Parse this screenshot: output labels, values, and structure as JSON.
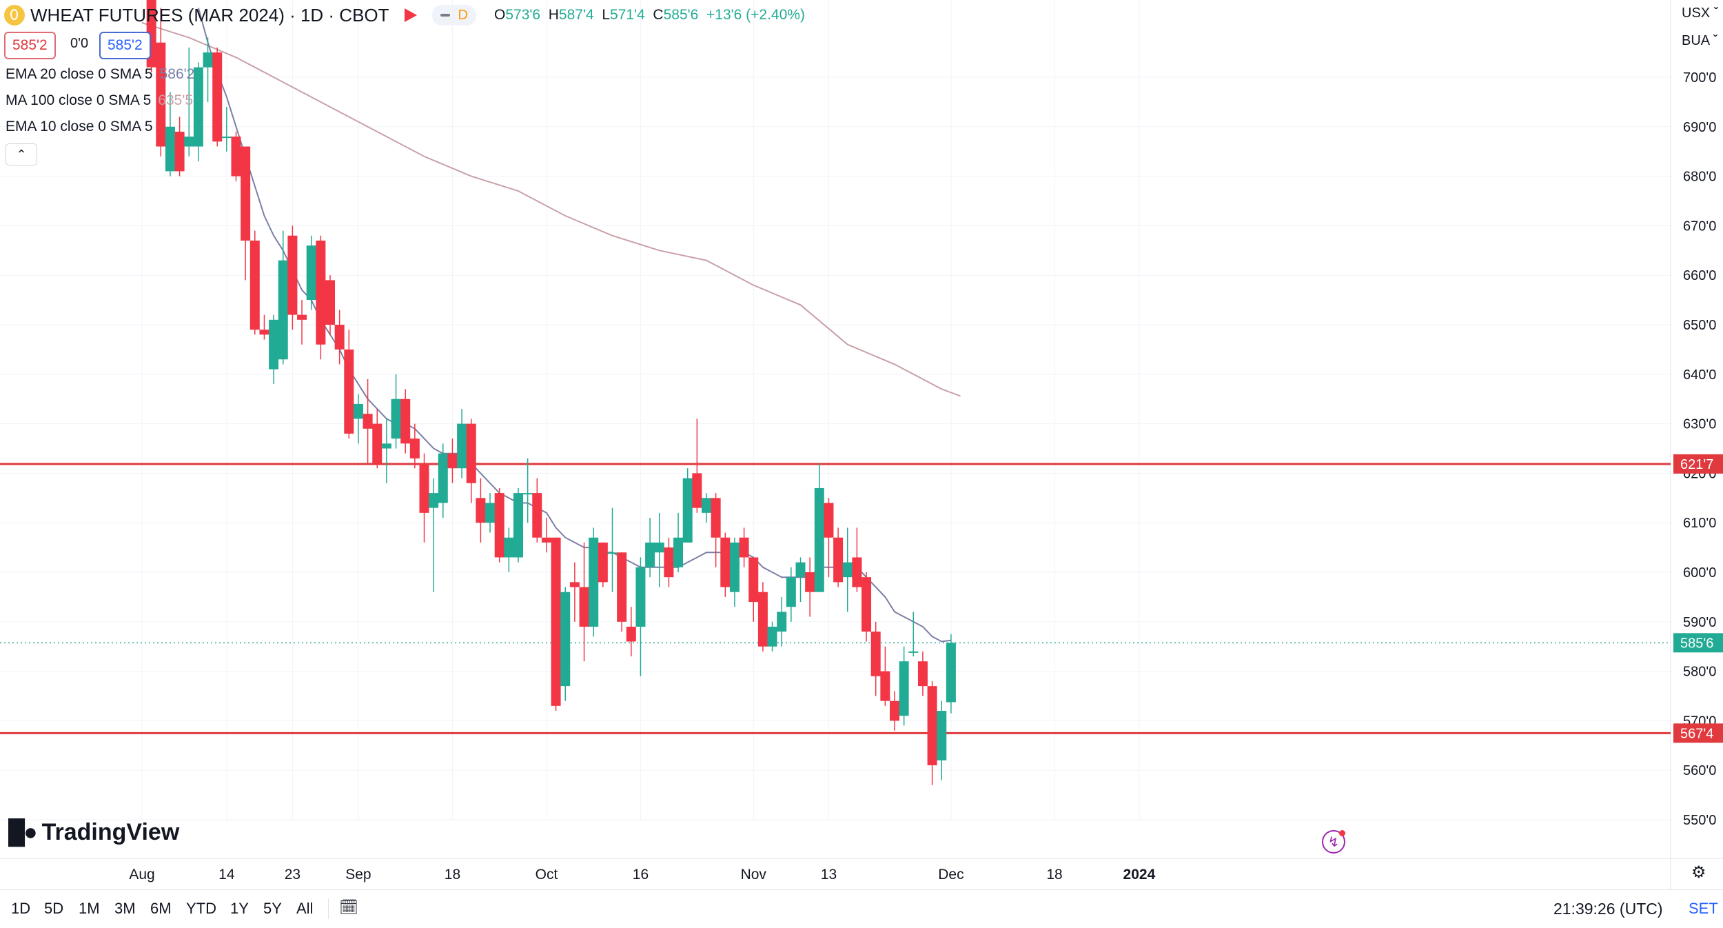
{
  "header": {
    "symbol_title": "WHEAT FUTURES (MAR 2024) · 1D · CBOT",
    "interval_badge": "D",
    "ohlc": {
      "o_label": "O",
      "o": "573'6",
      "h_label": "H",
      "h": "587'4",
      "l_label": "L",
      "l": "571'4",
      "c_label": "C",
      "c": "585'6",
      "change": "+13'6 (+2.40%)"
    },
    "bid": "585'2",
    "spread": "0'0",
    "ask": "585'2"
  },
  "indicators": [
    {
      "label": "EMA 20 close 0 SMA 5",
      "value": "586'2",
      "color": "#7b7fa6"
    },
    {
      "label": "MA 100 close 0 SMA 5",
      "value": "635'5",
      "color": "#c9a0a8"
    },
    {
      "label": "EMA 10 close 0 SMA 5",
      "value": "!",
      "color": "#f23645"
    }
  ],
  "collapse_icon": "chevron-up-icon",
  "axis": {
    "currency": "USX",
    "unit": "BUA",
    "session": "SET"
  },
  "clock": "21:39:26 (UTC)",
  "logo_text": "TradingView",
  "timeframes": [
    "1D",
    "5D",
    "1M",
    "3M",
    "6M",
    "YTD",
    "1Y",
    "5Y",
    "All"
  ],
  "colors": {
    "up": "#22ab94",
    "down": "#f23645",
    "ema20": "#7b7fa6",
    "ma100": "#c9a0a8",
    "level": "#e0393e",
    "grid": "#f0f3fa",
    "text": "#131722"
  },
  "chart_data": {
    "type": "candlestick",
    "title": "WHEAT FUTURES (MAR 2024) · 1D · CBOT",
    "y_unit": "US cents per bushel (fraction in eighths)",
    "ylim": [
      545,
      712
    ],
    "y_ticks": [
      {
        "v": 550,
        "label": "550'0"
      },
      {
        "v": 560,
        "label": "560'0"
      },
      {
        "v": 570,
        "label": "570'0"
      },
      {
        "v": 580,
        "label": "580'0"
      },
      {
        "v": 590,
        "label": "590'0"
      },
      {
        "v": 600,
        "label": "600'0"
      },
      {
        "v": 610,
        "label": "610'0"
      },
      {
        "v": 620,
        "label": "620'0"
      },
      {
        "v": 630,
        "label": "630'0"
      },
      {
        "v": 640,
        "label": "640'0"
      },
      {
        "v": 650,
        "label": "650'0"
      },
      {
        "v": 660,
        "label": "660'0"
      },
      {
        "v": 670,
        "label": "670'0"
      },
      {
        "v": 680,
        "label": "680'0"
      },
      {
        "v": 690,
        "label": "690'0"
      },
      {
        "v": 700,
        "label": "700'0"
      }
    ],
    "x_ticks": [
      {
        "i": 0,
        "label": "Aug",
        "bold": false
      },
      {
        "i": 9,
        "label": "14",
        "bold": false
      },
      {
        "i": 16,
        "label": "23",
        "bold": false
      },
      {
        "i": 23,
        "label": "Sep",
        "bold": false
      },
      {
        "i": 33,
        "label": "18",
        "bold": false
      },
      {
        "i": 43,
        "label": "Oct",
        "bold": false
      },
      {
        "i": 53,
        "label": "16",
        "bold": false
      },
      {
        "i": 65,
        "label": "Nov",
        "bold": false
      },
      {
        "i": 73,
        "label": "13",
        "bold": false
      },
      {
        "i": 86,
        "label": "Dec",
        "bold": false
      },
      {
        "i": 97,
        "label": "18",
        "bold": false
      },
      {
        "i": 106,
        "label": "2024",
        "bold": true
      }
    ],
    "horizontal_lines": [
      {
        "name": "resistance",
        "value": 621.875,
        "label": "621'7",
        "color": "#e0393e"
      },
      {
        "name": "support",
        "value": 567.5,
        "label": "567'4",
        "color": "#e0393e"
      }
    ],
    "last_price": {
      "value": 585.75,
      "label": "585'6",
      "color": "#22ab94"
    },
    "candles": [
      {
        "i": 1,
        "o": 716,
        "h": 720,
        "l": 701,
        "c": 702
      },
      {
        "i": 2,
        "o": 707,
        "h": 714,
        "l": 684,
        "c": 686
      },
      {
        "i": 3,
        "o": 681,
        "h": 697,
        "l": 680,
        "c": 690
      },
      {
        "i": 4,
        "o": 689,
        "h": 692,
        "l": 680,
        "c": 681
      },
      {
        "i": 5,
        "o": 686,
        "h": 706,
        "l": 684,
        "c": 688
      },
      {
        "i": 6,
        "o": 686,
        "h": 703,
        "l": 683,
        "c": 702
      },
      {
        "i": 7,
        "o": 702,
        "h": 708,
        "l": 695,
        "c": 705
      },
      {
        "i": 8,
        "o": 705,
        "h": 706,
        "l": 686,
        "c": 687
      },
      {
        "i": 9,
        "o": 688,
        "h": 694,
        "l": 685,
        "c": 688
      },
      {
        "i": 10,
        "o": 688,
        "h": 689,
        "l": 679,
        "c": 680
      },
      {
        "i": 11,
        "o": 686,
        "h": 686,
        "l": 659,
        "c": 667
      },
      {
        "i": 12,
        "o": 667,
        "h": 669,
        "l": 648,
        "c": 649
      },
      {
        "i": 13,
        "o": 649,
        "h": 652,
        "l": 647,
        "c": 648
      },
      {
        "i": 14,
        "o": 641,
        "h": 652,
        "l": 638,
        "c": 651
      },
      {
        "i": 15,
        "o": 643,
        "h": 669,
        "l": 642,
        "c": 663
      },
      {
        "i": 16,
        "o": 668,
        "h": 670,
        "l": 649,
        "c": 652
      },
      {
        "i": 17,
        "o": 652,
        "h": 655,
        "l": 646,
        "c": 651
      },
      {
        "i": 18,
        "o": 655,
        "h": 668,
        "l": 653,
        "c": 666
      },
      {
        "i": 19,
        "o": 667,
        "h": 668,
        "l": 643,
        "c": 646
      },
      {
        "i": 20,
        "o": 659,
        "h": 660,
        "l": 648,
        "c": 650
      },
      {
        "i": 21,
        "o": 650,
        "h": 653,
        "l": 642,
        "c": 645
      },
      {
        "i": 22,
        "o": 645,
        "h": 649,
        "l": 627,
        "c": 628
      },
      {
        "i": 23,
        "o": 631,
        "h": 636,
        "l": 626,
        "c": 634
      },
      {
        "i": 24,
        "o": 632,
        "h": 639,
        "l": 622,
        "c": 629
      },
      {
        "i": 25,
        "o": 630,
        "h": 633,
        "l": 621,
        "c": 622
      },
      {
        "i": 26,
        "o": 625,
        "h": 631,
        "l": 618,
        "c": 626
      },
      {
        "i": 27,
        "o": 627,
        "h": 640,
        "l": 625,
        "c": 635
      },
      {
        "i": 28,
        "o": 635,
        "h": 637,
        "l": 624,
        "c": 626
      },
      {
        "i": 29,
        "o": 627,
        "h": 630,
        "l": 621,
        "c": 623
      },
      {
        "i": 30,
        "o": 622,
        "h": 624,
        "l": 606,
        "c": 612
      },
      {
        "i": 31,
        "o": 613,
        "h": 619,
        "l": 596,
        "c": 616
      },
      {
        "i": 32,
        "o": 614,
        "h": 626,
        "l": 611,
        "c": 624
      },
      {
        "i": 33,
        "o": 624,
        "h": 627,
        "l": 618,
        "c": 621
      },
      {
        "i": 34,
        "o": 621,
        "h": 633,
        "l": 619,
        "c": 630
      },
      {
        "i": 35,
        "o": 630,
        "h": 631,
        "l": 614,
        "c": 618
      },
      {
        "i": 36,
        "o": 615,
        "h": 619,
        "l": 606,
        "c": 610
      },
      {
        "i": 37,
        "o": 610,
        "h": 616,
        "l": 608,
        "c": 614
      },
      {
        "i": 38,
        "o": 616,
        "h": 617,
        "l": 602,
        "c": 603
      },
      {
        "i": 39,
        "o": 603,
        "h": 609,
        "l": 600,
        "c": 607
      },
      {
        "i": 40,
        "o": 603,
        "h": 617,
        "l": 602,
        "c": 616
      },
      {
        "i": 41,
        "o": 616,
        "h": 623,
        "l": 610,
        "c": 616
      },
      {
        "i": 42,
        "o": 616,
        "h": 619,
        "l": 606,
        "c": 607
      },
      {
        "i": 43,
        "o": 607,
        "h": 611,
        "l": 604,
        "c": 606
      },
      {
        "i": 44,
        "o": 607,
        "h": 607,
        "l": 572,
        "c": 573
      },
      {
        "i": 45,
        "o": 577,
        "h": 597,
        "l": 574,
        "c": 596
      },
      {
        "i": 46,
        "o": 598,
        "h": 602,
        "l": 590,
        "c": 597
      },
      {
        "i": 47,
        "o": 597,
        "h": 606,
        "l": 582,
        "c": 589
      },
      {
        "i": 48,
        "o": 589,
        "h": 609,
        "l": 587,
        "c": 607
      },
      {
        "i": 49,
        "o": 606,
        "h": 606,
        "l": 597,
        "c": 598
      },
      {
        "i": 50,
        "o": 604,
        "h": 613,
        "l": 596,
        "c": 604
      },
      {
        "i": 51,
        "o": 604,
        "h": 604,
        "l": 588,
        "c": 590
      },
      {
        "i": 52,
        "o": 589,
        "h": 593,
        "l": 583,
        "c": 586
      },
      {
        "i": 53,
        "o": 589,
        "h": 603,
        "l": 579,
        "c": 601
      },
      {
        "i": 54,
        "o": 601,
        "h": 611,
        "l": 599,
        "c": 606
      },
      {
        "i": 55,
        "o": 604,
        "h": 612,
        "l": 597,
        "c": 606
      },
      {
        "i": 56,
        "o": 605,
        "h": 607,
        "l": 597,
        "c": 599
      },
      {
        "i": 57,
        "o": 601,
        "h": 612,
        "l": 600,
        "c": 607
      },
      {
        "i": 58,
        "o": 606,
        "h": 621,
        "l": 606,
        "c": 619
      },
      {
        "i": 59,
        "o": 620,
        "h": 631,
        "l": 612,
        "c": 613
      },
      {
        "i": 60,
        "o": 612,
        "h": 616,
        "l": 610,
        "c": 615
      },
      {
        "i": 61,
        "o": 615,
        "h": 616,
        "l": 601,
        "c": 607
      },
      {
        "i": 62,
        "o": 607,
        "h": 608,
        "l": 595,
        "c": 597
      },
      {
        "i": 63,
        "o": 596,
        "h": 607,
        "l": 593,
        "c": 606
      },
      {
        "i": 64,
        "o": 607,
        "h": 609,
        "l": 601,
        "c": 603
      },
      {
        "i": 65,
        "o": 603,
        "h": 603,
        "l": 590,
        "c": 594
      },
      {
        "i": 66,
        "o": 596,
        "h": 598,
        "l": 584,
        "c": 585
      },
      {
        "i": 67,
        "o": 585,
        "h": 590,
        "l": 584,
        "c": 589
      },
      {
        "i": 68,
        "o": 588,
        "h": 595,
        "l": 585,
        "c": 592
      },
      {
        "i": 69,
        "o": 593,
        "h": 601,
        "l": 590,
        "c": 599
      },
      {
        "i": 70,
        "o": 599,
        "h": 603,
        "l": 594,
        "c": 602
      },
      {
        "i": 71,
        "o": 600,
        "h": 603,
        "l": 591,
        "c": 596
      },
      {
        "i": 72,
        "o": 596,
        "h": 622,
        "l": 596,
        "c": 617
      },
      {
        "i": 73,
        "o": 614,
        "h": 615,
        "l": 599,
        "c": 607
      },
      {
        "i": 74,
        "o": 607,
        "h": 609,
        "l": 597,
        "c": 598
      },
      {
        "i": 75,
        "o": 599,
        "h": 609,
        "l": 592,
        "c": 602
      },
      {
        "i": 76,
        "o": 603,
        "h": 609,
        "l": 596,
        "c": 597
      },
      {
        "i": 77,
        "o": 599,
        "h": 600,
        "l": 586,
        "c": 588
      },
      {
        "i": 78,
        "o": 588,
        "h": 590,
        "l": 575,
        "c": 579
      },
      {
        "i": 79,
        "o": 580,
        "h": 585,
        "l": 573,
        "c": 574
      },
      {
        "i": 80,
        "o": 574,
        "h": 576,
        "l": 568,
        "c": 570
      },
      {
        "i": 81,
        "o": 571,
        "h": 585,
        "l": 569,
        "c": 582
      },
      {
        "i": 82,
        "o": 584,
        "h": 592,
        "l": 583,
        "c": 584
      },
      {
        "i": 83,
        "o": 582,
        "h": 584,
        "l": 575,
        "c": 577
      },
      {
        "i": 84,
        "o": 577,
        "h": 578,
        "l": 557,
        "c": 561
      },
      {
        "i": 85,
        "o": 562,
        "h": 574,
        "l": 558,
        "c": 572
      },
      {
        "i": 86,
        "o": 573.75,
        "h": 587.5,
        "l": 571.5,
        "c": 585.75
      }
    ],
    "series": [
      {
        "name": "EMA 20",
        "color": "#7b7fa6",
        "points": [
          [
            6,
            714
          ],
          [
            7,
            707
          ],
          [
            8,
            701
          ],
          [
            9,
            696
          ],
          [
            10,
            690
          ],
          [
            11,
            684
          ],
          [
            12,
            678
          ],
          [
            13,
            672
          ],
          [
            14,
            668
          ],
          [
            15,
            665
          ],
          [
            16,
            661
          ],
          [
            17,
            657
          ],
          [
            18,
            655
          ],
          [
            19,
            651
          ],
          [
            20,
            648
          ],
          [
            21,
            645
          ],
          [
            22,
            641
          ],
          [
            23,
            638
          ],
          [
            24,
            635
          ],
          [
            25,
            633
          ],
          [
            26,
            631
          ],
          [
            27,
            630
          ],
          [
            28,
            630
          ],
          [
            29,
            629
          ],
          [
            30,
            627
          ],
          [
            31,
            625
          ],
          [
            32,
            624
          ],
          [
            33,
            624
          ],
          [
            34,
            624
          ],
          [
            35,
            622
          ],
          [
            36,
            620
          ],
          [
            37,
            618
          ],
          [
            38,
            616
          ],
          [
            39,
            615
          ],
          [
            40,
            614
          ],
          [
            41,
            614
          ],
          [
            42,
            613
          ],
          [
            43,
            612
          ],
          [
            44,
            609
          ],
          [
            45,
            607
          ],
          [
            46,
            606
          ],
          [
            47,
            605
          ],
          [
            48,
            605
          ],
          [
            49,
            604
          ],
          [
            50,
            604
          ],
          [
            51,
            603
          ],
          [
            52,
            602
          ],
          [
            53,
            601
          ],
          [
            54,
            601
          ],
          [
            55,
            601
          ],
          [
            56,
            601
          ],
          [
            57,
            601
          ],
          [
            58,
            602
          ],
          [
            59,
            603
          ],
          [
            60,
            604
          ],
          [
            61,
            604
          ],
          [
            62,
            604
          ],
          [
            63,
            604
          ],
          [
            64,
            604
          ],
          [
            65,
            603
          ],
          [
            66,
            601
          ],
          [
            67,
            600
          ],
          [
            68,
            599
          ],
          [
            69,
            599
          ],
          [
            70,
            599
          ],
          [
            71,
            599
          ],
          [
            72,
            601
          ],
          [
            73,
            601
          ],
          [
            74,
            601
          ],
          [
            75,
            601
          ],
          [
            76,
            601
          ],
          [
            77,
            599
          ],
          [
            78,
            597
          ],
          [
            79,
            595
          ],
          [
            80,
            592
          ],
          [
            81,
            591
          ],
          [
            82,
            590
          ],
          [
            83,
            589
          ],
          [
            84,
            587
          ],
          [
            85,
            586
          ],
          [
            86,
            586.25
          ]
        ]
      },
      {
        "name": "MA 100",
        "color": "#c9a0a8",
        "points": [
          [
            0,
            711
          ],
          [
            5,
            708
          ],
          [
            10,
            704
          ],
          [
            15,
            699
          ],
          [
            20,
            694
          ],
          [
            25,
            689
          ],
          [
            30,
            684
          ],
          [
            35,
            680
          ],
          [
            40,
            677
          ],
          [
            45,
            672
          ],
          [
            50,
            668
          ],
          [
            55,
            665
          ],
          [
            60,
            663
          ],
          [
            65,
            658
          ],
          [
            70,
            654
          ],
          [
            75,
            646
          ],
          [
            80,
            642
          ],
          [
            85,
            637
          ],
          [
            87,
            635.6
          ]
        ]
      }
    ]
  }
}
